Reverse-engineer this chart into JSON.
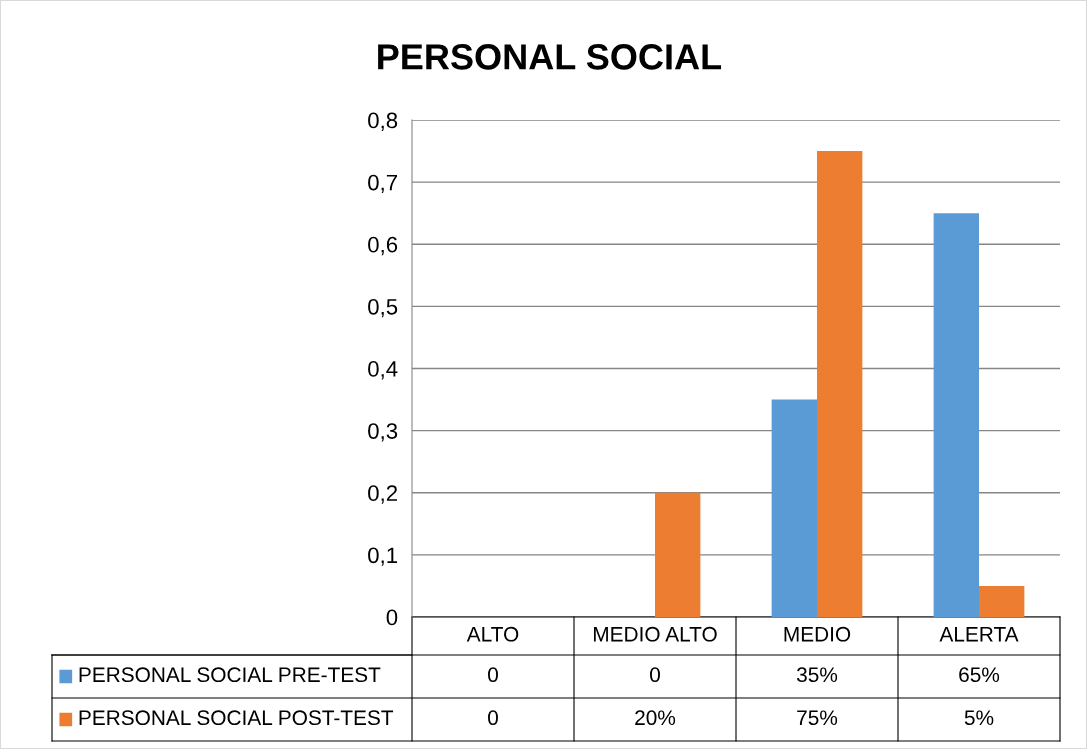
{
  "chart_data": {
    "type": "bar",
    "title": "PERSONAL SOCIAL",
    "categories": [
      "ALTO",
      "MEDIO ALTO",
      "MEDIO",
      "ALERTA"
    ],
    "series": [
      {
        "name": "PERSONAL SOCIAL PRE-TEST",
        "color": "#5b9bd5",
        "values": [
          0,
          0,
          0.35,
          0.65
        ],
        "value_labels": [
          "0",
          "0",
          "35%",
          "65%"
        ]
      },
      {
        "name": "PERSONAL SOCIAL POST-TEST",
        "color": "#ed7d31",
        "values": [
          0,
          0.2,
          0.75,
          0.05
        ],
        "value_labels": [
          "0",
          "20%",
          "75%",
          "5%"
        ]
      }
    ],
    "ylim": [
      0,
      0.8
    ],
    "yticks": [
      0,
      {
        "value": 0.1,
        "label": "0,1"
      },
      {
        "value": 0.2,
        "label": "0,2"
      },
      {
        "value": 0.3,
        "label": "0,3"
      },
      {
        "value": 0.4,
        "label": "0,4"
      },
      {
        "value": 0.5,
        "label": "0,5"
      },
      {
        "value": 0.6,
        "label": "0,6"
      },
      {
        "value": 0.7,
        "label": "0,7"
      },
      {
        "value": 0.8,
        "label": "0,8"
      }
    ],
    "grid": "y",
    "legend": "bottom"
  }
}
